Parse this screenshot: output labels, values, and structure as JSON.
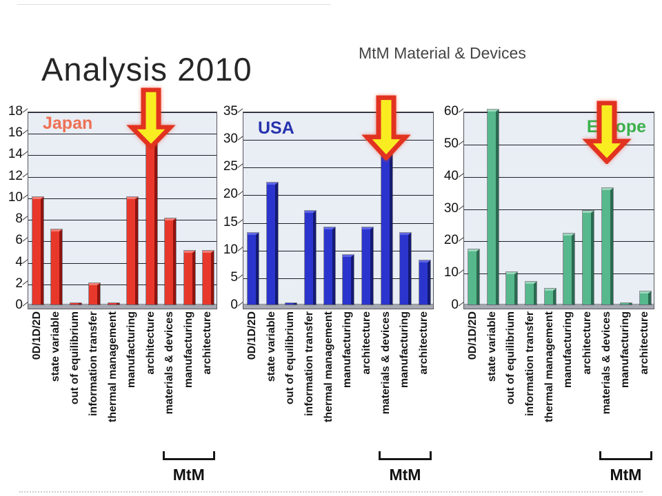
{
  "slide": {
    "title": "Analysis 2010",
    "subtitle": "MtM Material & Devices"
  },
  "arrow": {
    "fill": "#f9ed22",
    "outline": "#e23220"
  },
  "chart_data": [
    {
      "type": "bar",
      "title": "Japan",
      "title_color": "#ed7154",
      "title_align": "left",
      "categories": [
        "0D/1D/2D",
        "state variable",
        "out of equilibrium",
        "information transfer",
        "thermal management",
        "manufacturing",
        "architecture",
        "materials & devices",
        "manufacturing",
        "architecture"
      ],
      "values": [
        10,
        7,
        0.15,
        2,
        0.15,
        10,
        17,
        8,
        5,
        5
      ],
      "ylim": [
        0,
        18
      ],
      "yticks": [
        0,
        2,
        4,
        6,
        8,
        10,
        12,
        14,
        16,
        18
      ],
      "grid": true,
      "legend": "none",
      "bar_colors": {
        "front": "#e8382b",
        "side": "#8e130e",
        "top": "#f47c72"
      },
      "arrow_index": 6,
      "bracket": {
        "label": "MtM",
        "from_index": 7,
        "to_index": 9
      }
    },
    {
      "type": "bar",
      "title": "USA",
      "title_color": "#2733ae",
      "title_align": "left",
      "categories": [
        "0D/1D/2D",
        "state variable",
        "out of equilibrium",
        "information transfer",
        "thermal management",
        "manufacturing",
        "architecture",
        "materials & devices",
        "manufacturing",
        "architecture"
      ],
      "values": [
        13,
        22,
        0.15,
        17,
        14,
        9,
        14,
        33,
        13,
        8
      ],
      "ylim": [
        0,
        35
      ],
      "yticks": [
        0,
        5,
        10,
        15,
        20,
        25,
        30,
        35
      ],
      "grid": true,
      "legend": "none",
      "bar_colors": {
        "front": "#2b35ce",
        "side": "#141a72",
        "top": "#5e66e6"
      },
      "arrow_index": 7,
      "bracket": {
        "label": "MtM",
        "from_index": 7,
        "to_index": 9
      }
    },
    {
      "type": "bar",
      "title": "Europe",
      "title_color": "#3cb04a",
      "title_align": "right",
      "categories": [
        "0D/1D/2D",
        "state variable",
        "out of equilibrium",
        "information transfer",
        "thermal management",
        "manufacturing",
        "architecture",
        "materials & devices",
        "manufacturing",
        "architecture"
      ],
      "values": [
        17,
        61,
        10,
        7,
        5,
        22,
        29,
        36,
        0.5,
        4
      ],
      "ylim": [
        0,
        60
      ],
      "yticks": [
        0,
        10,
        20,
        30,
        40,
        50,
        60
      ],
      "grid": true,
      "legend": "none",
      "bar_colors": {
        "front": "#56b88c",
        "side": "#2b6a50",
        "top": "#9ad8bb"
      },
      "arrow_index": 7,
      "bracket": {
        "label": "MtM",
        "from_index": 7,
        "to_index": 9
      }
    }
  ]
}
